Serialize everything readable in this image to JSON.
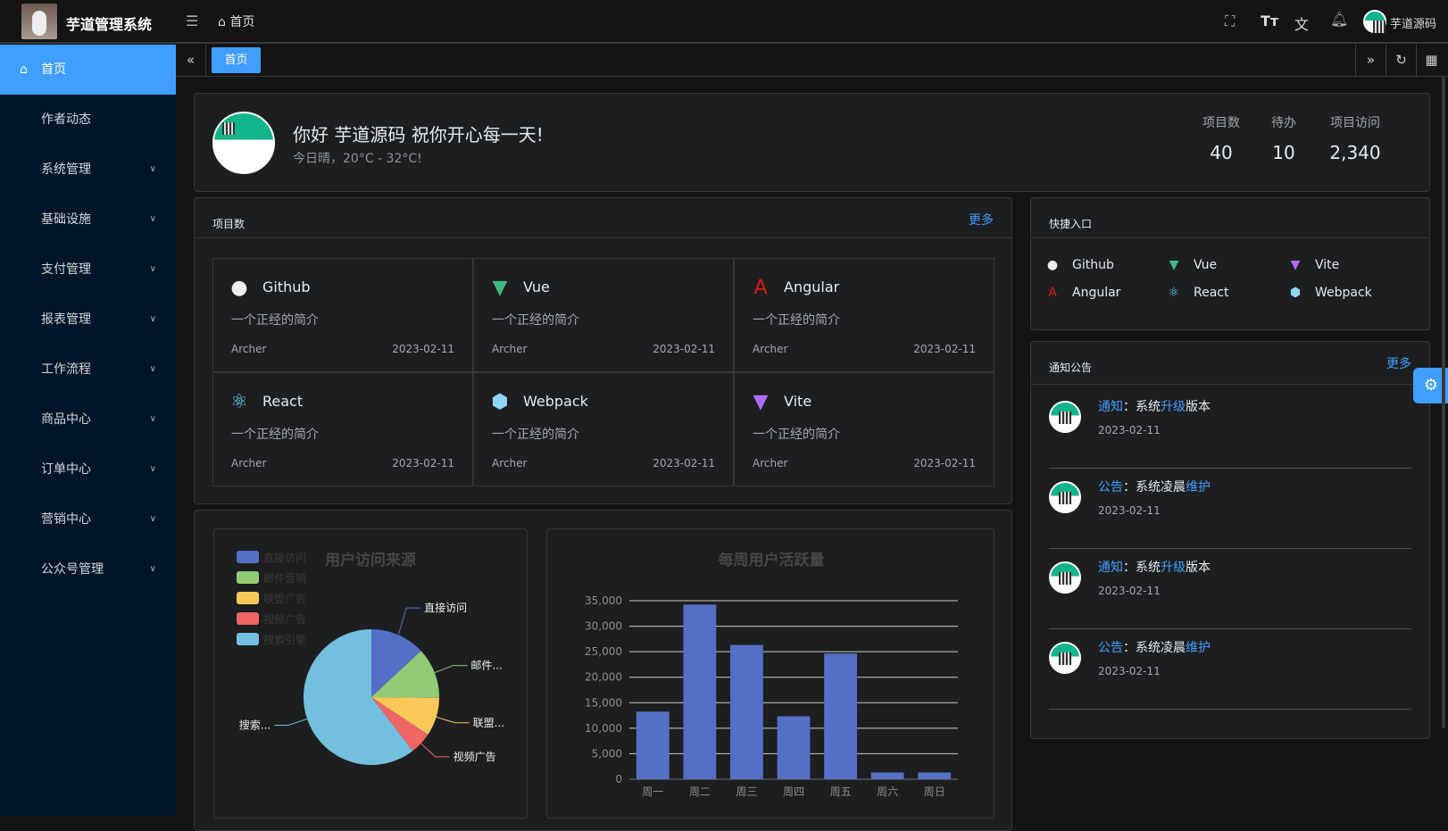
{
  "header": {
    "title": "芋道管理系统",
    "breadcrumb": "首页",
    "user": "芋道源码",
    "icons": [
      "menu-fold-icon",
      "fullscreen-icon",
      "font-size-icon",
      "translate-icon",
      "bell-icon"
    ]
  },
  "sidebar": {
    "items": [
      {
        "label": "首页",
        "active": true
      },
      {
        "label": "作者动态"
      },
      {
        "label": "系统管理",
        "expandable": true
      },
      {
        "label": "基础设施",
        "expandable": true
      },
      {
        "label": "支付管理",
        "expandable": true
      },
      {
        "label": "报表管理",
        "expandable": true
      },
      {
        "label": "工作流程",
        "expandable": true
      },
      {
        "label": "商品中心",
        "expandable": true
      },
      {
        "label": "订单中心",
        "expandable": true
      },
      {
        "label": "营销中心",
        "expandable": true
      },
      {
        "label": "公众号管理",
        "expandable": true
      }
    ]
  },
  "tabs": [
    {
      "label": "首页",
      "active": true
    }
  ],
  "welcome": {
    "greeting": "你好 芋道源码 祝你开心每一天!",
    "weather": "今日晴，20°C - 32°C!",
    "stats": [
      {
        "label": "项目数",
        "value": "40"
      },
      {
        "label": "待办",
        "value": "10"
      },
      {
        "label": "项目访问",
        "value": "2,340"
      }
    ]
  },
  "projects": {
    "title": "项目数",
    "more": "更多",
    "items": [
      {
        "name": "Github",
        "icon": "github-icon",
        "desc": "一个正经的简介",
        "author": "Archer",
        "date": "2023-02-11"
      },
      {
        "name": "Vue",
        "icon": "vue-icon",
        "desc": "一个正经的简介",
        "author": "Archer",
        "date": "2023-02-11"
      },
      {
        "name": "Angular",
        "icon": "angular-icon",
        "desc": "一个正经的简介",
        "author": "Archer",
        "date": "2023-02-11"
      },
      {
        "name": "React",
        "icon": "react-icon",
        "desc": "一个正经的简介",
        "author": "Archer",
        "date": "2023-02-11"
      },
      {
        "name": "Webpack",
        "icon": "webpack-icon",
        "desc": "一个正经的简介",
        "author": "Archer",
        "date": "2023-02-11"
      },
      {
        "name": "Vite",
        "icon": "vite-icon",
        "desc": "一个正经的简介",
        "author": "Archer",
        "date": "2023-02-11"
      }
    ]
  },
  "shortcuts": {
    "title": "快捷入口",
    "items": [
      {
        "name": "Github"
      },
      {
        "name": "Vue"
      },
      {
        "name": "Vite"
      },
      {
        "name": "Angular"
      },
      {
        "name": "React"
      },
      {
        "name": "Webpack"
      }
    ]
  },
  "notices": {
    "title": "通知公告",
    "more": "更多",
    "items": [
      {
        "type": "通知",
        "pre": "：系统",
        "hl": "升级",
        "post": "版本",
        "date": "2023-02-11"
      },
      {
        "type": "公告",
        "pre": "：系统凌晨",
        "hl": "维护",
        "post": "",
        "date": "2023-02-11"
      },
      {
        "type": "通知",
        "pre": "：系统",
        "hl": "升级",
        "post": "版本",
        "date": "2023-02-11"
      },
      {
        "type": "公告",
        "pre": "：系统凌晨",
        "hl": "维护",
        "post": "",
        "date": "2023-02-11"
      }
    ]
  },
  "chart_data": [
    {
      "type": "pie",
      "title": "用户访问来源",
      "legend_placement": "top-left",
      "categories": [
        "直接访问",
        "邮件营销",
        "联盟广告",
        "视频广告",
        "搜索引擎"
      ],
      "values": [
        335,
        310,
        234,
        135,
        1548
      ],
      "colors": [
        "#5470c6",
        "#91cc75",
        "#fac858",
        "#ee6666",
        "#73c0de"
      ],
      "slice_labels": [
        "直接访问",
        "邮件...",
        "联盟...",
        "视频广告",
        "搜索..."
      ]
    },
    {
      "type": "bar",
      "title": "每周用户活跃量",
      "categories": [
        "周一",
        "周二",
        "周三",
        "周四",
        "周五",
        "周六",
        "周日"
      ],
      "values": [
        13253,
        34235,
        26321,
        12340,
        24643,
        1322,
        1324
      ],
      "ylim": [
        0,
        35000
      ],
      "yticks": [
        "0",
        "5,000",
        "10,000",
        "15,000",
        "20,000",
        "25,000",
        "30,000",
        "35,000"
      ],
      "color": "#5470c6",
      "grid": true
    }
  ]
}
